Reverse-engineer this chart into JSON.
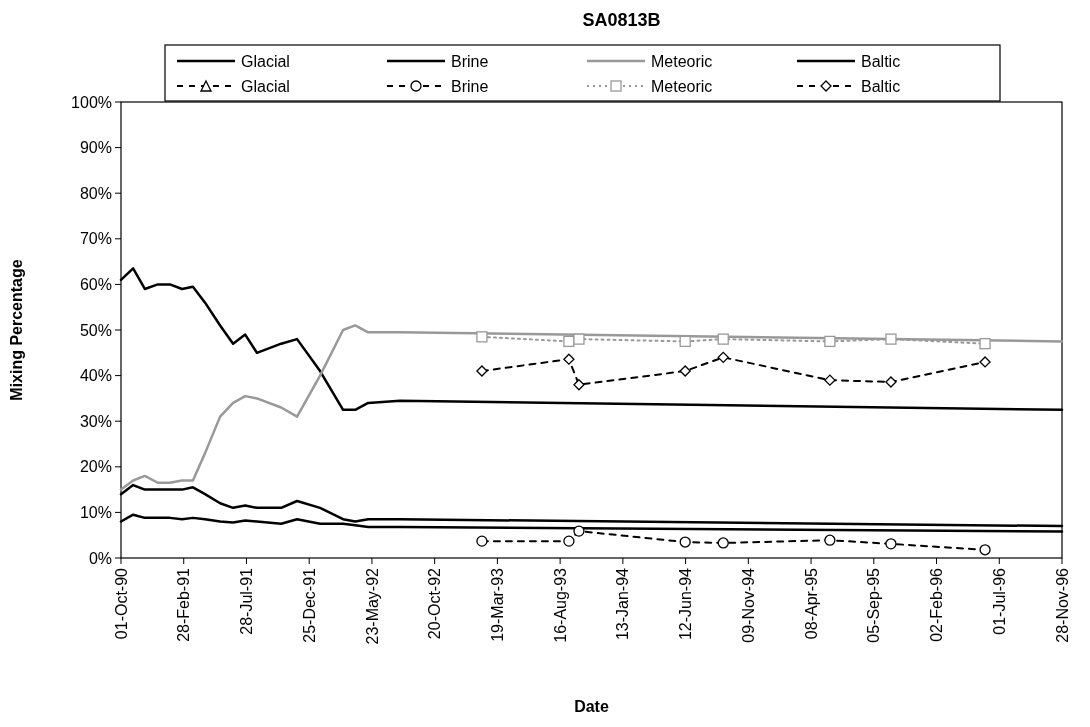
{
  "chart_data": {
    "type": "line",
    "title": "SA0813B",
    "xlabel": "Date",
    "ylabel": "Mixing Percentage",
    "xlim": [
      "1990-10-01",
      "1996-11-28"
    ],
    "xticks": [
      {
        "value": "1990-10-01",
        "label": "01-Oct-90"
      },
      {
        "value": "1991-02-28",
        "label": "28-Feb-91"
      },
      {
        "value": "1991-07-28",
        "label": "28-Jul-91"
      },
      {
        "value": "1991-12-25",
        "label": "25-Dec-91"
      },
      {
        "value": "1992-05-23",
        "label": "23-May-92"
      },
      {
        "value": "1992-10-20",
        "label": "20-Oct-92"
      },
      {
        "value": "1993-03-19",
        "label": "19-Mar-93"
      },
      {
        "value": "1993-08-16",
        "label": "16-Aug-93"
      },
      {
        "value": "1994-01-13",
        "label": "13-Jan-94"
      },
      {
        "value": "1994-06-12",
        "label": "12-Jun-94"
      },
      {
        "value": "1994-11-09",
        "label": "09-Nov-94"
      },
      {
        "value": "1995-04-08",
        "label": "08-Apr-95"
      },
      {
        "value": "1995-09-05",
        "label": "05-Sep-95"
      },
      {
        "value": "1996-02-02",
        "label": "02-Feb-96"
      },
      {
        "value": "1996-07-01",
        "label": "01-Jul-96"
      },
      {
        "value": "1996-11-28",
        "label": "28-Nov-96"
      }
    ],
    "ylim": [
      0,
      100
    ],
    "yticks": [
      {
        "value": 0,
        "label": "0%"
      },
      {
        "value": 10,
        "label": "10%"
      },
      {
        "value": 20,
        "label": "20%"
      },
      {
        "value": 30,
        "label": "30%"
      },
      {
        "value": 40,
        "label": "40%"
      },
      {
        "value": 50,
        "label": "50%"
      },
      {
        "value": 60,
        "label": "60%"
      },
      {
        "value": 70,
        "label": "70%"
      },
      {
        "value": 80,
        "label": "80%"
      },
      {
        "value": 90,
        "label": "90%"
      },
      {
        "value": 100,
        "label": "100%"
      }
    ],
    "grid": false,
    "legend": "top",
    "series": [
      {
        "name": "Glacial",
        "color": "#000000",
        "line_style": "solid",
        "marker": "none",
        "x": [
          "1990-10-01",
          "1990-10-30",
          "1990-11-27",
          "1990-12-28",
          "1991-01-26",
          "1991-02-24",
          "1991-03-22",
          "1991-04-20",
          "1991-05-26",
          "1991-06-26",
          "1991-07-25",
          "1991-08-22",
          "1991-10-19",
          "1991-11-26",
          "1992-01-20",
          "1992-03-15",
          "1992-04-13",
          "1992-05-14",
          "1992-07-29",
          "1996-11-28"
        ],
        "values": [
          61,
          63.5,
          59,
          60,
          60,
          59,
          59.5,
          56,
          51,
          47,
          49,
          45,
          47,
          48,
          41,
          32.5,
          32.5,
          34,
          34.5,
          32.5
        ]
      },
      {
        "name": "Brine",
        "color": "#000000",
        "line_style": "solid",
        "marker": "none",
        "x": [
          "1990-10-01",
          "1990-10-30",
          "1990-11-27",
          "1990-12-28",
          "1991-01-26",
          "1991-02-24",
          "1991-03-22",
          "1991-04-20",
          "1991-05-26",
          "1991-06-26",
          "1991-07-25",
          "1991-08-22",
          "1991-10-19",
          "1991-11-26",
          "1992-01-20",
          "1992-03-15",
          "1992-04-13",
          "1992-05-14",
          "1992-07-29",
          "1996-11-28"
        ],
        "values": [
          14,
          16,
          15,
          15,
          15,
          15,
          15.5,
          14,
          12,
          11,
          11.5,
          11,
          11,
          12.5,
          11,
          8.5,
          8,
          8.5,
          8.5,
          7
        ]
      },
      {
        "name": "Meteoric",
        "color": "#999999",
        "line_style": "solid",
        "marker": "none",
        "x": [
          "1990-10-01",
          "1990-10-30",
          "1990-11-27",
          "1990-12-28",
          "1991-01-26",
          "1991-02-24",
          "1991-03-22",
          "1991-04-20",
          "1991-05-26",
          "1991-06-26",
          "1991-07-25",
          "1991-08-22",
          "1991-10-19",
          "1991-11-26",
          "1992-01-20",
          "1992-03-15",
          "1992-04-13",
          "1992-05-14",
          "1992-07-29",
          "1996-11-28"
        ],
        "values": [
          15,
          17,
          18,
          16.5,
          16.5,
          17,
          17,
          23,
          31,
          34,
          35.5,
          35,
          33,
          31,
          40,
          50,
          51,
          49.5,
          49.5,
          47.5
        ]
      },
      {
        "name": "Baltic",
        "color": "#000000",
        "line_style": "solid",
        "marker": "none",
        "x": [
          "1990-10-01",
          "1990-10-30",
          "1990-11-27",
          "1990-12-28",
          "1991-01-26",
          "1991-02-24",
          "1991-03-22",
          "1991-04-20",
          "1991-05-26",
          "1991-06-26",
          "1991-07-25",
          "1991-08-22",
          "1991-10-19",
          "1991-11-26",
          "1992-01-20",
          "1992-03-15",
          "1992-04-13",
          "1992-05-14",
          "1992-07-29",
          "1996-11-28"
        ],
        "values": [
          8,
          9.5,
          8.8,
          8.8,
          8.8,
          8.5,
          8.8,
          8.5,
          8,
          7.8,
          8.2,
          8,
          7.5,
          8.5,
          7.5,
          7.5,
          7.2,
          6.8,
          6.8,
          5.8
        ]
      },
      {
        "name": "Glacial",
        "color": "#000000",
        "line_style": "dashed",
        "marker": "triangle"
      },
      {
        "name": "Brine",
        "color": "#000000",
        "line_style": "dashed",
        "marker": "circle",
        "x": [
          "1993-02-10",
          "1993-09-06",
          "1993-09-30",
          "1994-06-11",
          "1994-09-10",
          "1995-05-23",
          "1995-10-16",
          "1996-05-28"
        ],
        "values": [
          3.7,
          3.7,
          5.9,
          3.5,
          3.3,
          3.9,
          3.1,
          1.8
        ]
      },
      {
        "name": "Meteoric",
        "color": "#999999",
        "line_style": "dotted",
        "marker": "square",
        "x": [
          "1993-02-10",
          "1993-09-06",
          "1993-09-30",
          "1994-06-11",
          "1994-09-10",
          "1995-05-23",
          "1995-10-16",
          "1996-05-28"
        ],
        "values": [
          48.5,
          47.5,
          48,
          47.5,
          48,
          47.5,
          48,
          47
        ]
      },
      {
        "name": "Baltic",
        "color": "#000000",
        "line_style": "dashed",
        "marker": "diamond",
        "x": [
          "1993-02-10",
          "1993-09-06",
          "1993-09-30",
          "1994-06-11",
          "1994-09-10",
          "1995-05-23",
          "1995-10-16",
          "1996-05-28"
        ],
        "values": [
          41,
          43.6,
          38,
          41,
          44,
          39,
          38.6,
          43
        ]
      }
    ]
  }
}
